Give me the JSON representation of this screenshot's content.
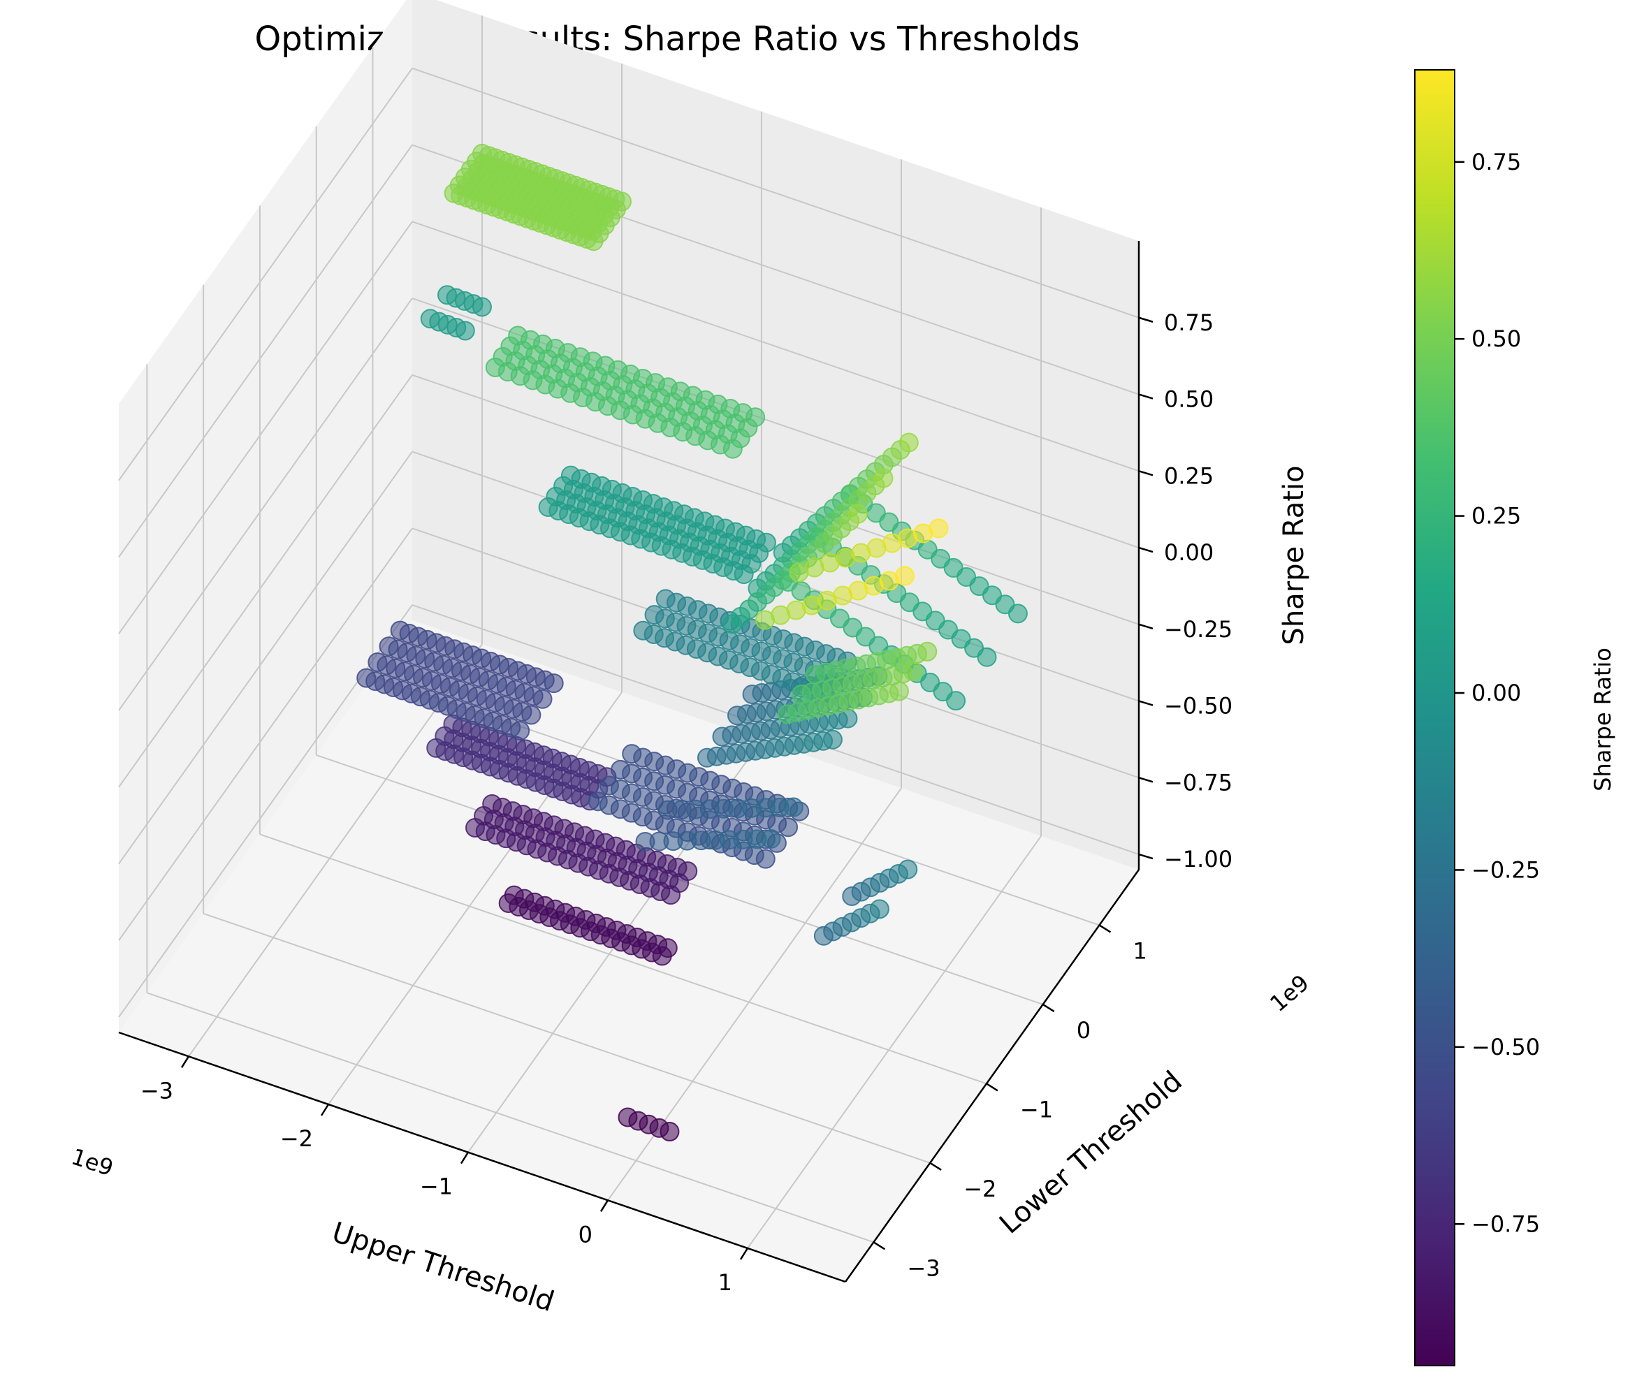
{
  "chart_data": {
    "type": "scatter3d",
    "title": "Optimization Results: Sharpe Ratio vs Thresholds",
    "xlabel": "Upper Threshold",
    "ylabel": "Lower Threshold",
    "zlabel": "Sharpe Ratio",
    "x_offset_label": "1e9",
    "y_offset_label": "1e9",
    "xlim": [
      -3.5,
      1.7
    ],
    "ylim": [
      -3.5,
      1.7
    ],
    "zlim": [
      -1.05,
      1.0
    ],
    "x_ticks": [
      -3,
      -2,
      -1,
      0,
      1
    ],
    "x_tick_labels": [
      "−3",
      "−2",
      "−1",
      "0",
      "1"
    ],
    "y_ticks": [
      -3,
      -2,
      -1,
      0,
      1
    ],
    "y_tick_labels": [
      "−3",
      "−2",
      "−1",
      "0",
      "1"
    ],
    "z_ticks": [
      -1.0,
      -0.75,
      -0.5,
      -0.25,
      0.0,
      0.25,
      0.5,
      0.75
    ],
    "z_tick_labels": [
      "−1.00",
      "−0.75",
      "−0.50",
      "−0.25",
      "0.00",
      "0.25",
      "0.50",
      "0.75"
    ],
    "grid": true,
    "colormap": "viridis",
    "colorbar": {
      "label": "Sharpe Ratio",
      "min": -0.95,
      "max": 0.88,
      "ticks": [
        -0.75,
        -0.5,
        -0.25,
        0.0,
        0.25,
        0.5,
        0.75
      ],
      "tick_labels": [
        "−0.75",
        "−0.50",
        "−0.25",
        "0.00",
        "0.25",
        "0.50",
        "0.75"
      ]
    },
    "point_groups": [
      {
        "x": [
          -3.0,
          -2.0
        ],
        "y": [
          1.2,
          1.7
        ],
        "z": [
          0.55,
          0.55
        ],
        "nx": 22,
        "ny": 6
      },
      {
        "x": [
          -3.25,
          -3.0
        ],
        "y": [
          1.4,
          1.7
        ],
        "z": [
          0.05,
          0.05
        ],
        "nx": 5,
        "ny": 2
      },
      {
        "x": [
          -2.9,
          -1.8
        ],
        "y": [
          -0.6,
          0.0
        ],
        "z": [
          -0.55,
          -0.55
        ],
        "nx": 18,
        "ny": 4
      },
      {
        "x": [
          -2.4,
          -1.3
        ],
        "y": [
          -0.6,
          -0.3
        ],
        "z": [
          -0.7,
          -0.7
        ],
        "nx": 18,
        "ny": 3
      },
      {
        "x": [
          -2.0,
          -0.6
        ],
        "y": [
          -0.9,
          -0.6
        ],
        "z": [
          -0.82,
          -0.82
        ],
        "nx": 20,
        "ny": 3
      },
      {
        "x": [
          -1.6,
          -0.5
        ],
        "y": [
          -1.3,
          -1.2
        ],
        "z": [
          -0.9,
          -0.9
        ],
        "nx": 16,
        "ny": 2
      },
      {
        "x": [
          -2.3,
          -0.6
        ],
        "y": [
          0.2,
          0.6
        ],
        "z": [
          0.35,
          0.35
        ],
        "nx": 20,
        "ny": 4
      },
      {
        "x": [
          -1.8,
          -0.4
        ],
        "y": [
          -0.1,
          0.3
        ],
        "z": [
          0.05,
          0.05
        ],
        "nx": 20,
        "ny": 4
      },
      {
        "x": [
          -1.0,
          0.3
        ],
        "y": [
          -0.4,
          0.0
        ],
        "z": [
          -0.15,
          -0.15
        ],
        "nx": 18,
        "ny": 3
      },
      {
        "x": [
          -1.0,
          0.2
        ],
        "y": [
          -1.2,
          -0.6
        ],
        "z": [
          -0.5,
          -0.5
        ],
        "nx": 16,
        "ny": 4
      },
      {
        "x": [
          -0.2,
          0.7
        ],
        "y": [
          -0.8,
          0.1
        ],
        "z": [
          0.1,
          0.6
        ],
        "nx": 16,
        "ny": 3
      },
      {
        "x": [
          -0.3,
          0.6
        ],
        "y": [
          -1.0,
          -0.2
        ],
        "z": [
          -0.3,
          -0.1
        ],
        "nx": 14,
        "ny": 4
      },
      {
        "x": [
          0.2,
          1.4
        ],
        "y": [
          -0.8,
          0.3
        ],
        "z": [
          0.3,
          0.1
        ],
        "nx": 14,
        "ny": 3
      },
      {
        "x": [
          0.6,
          1.6
        ],
        "y": [
          -2.2,
          -1.6
        ],
        "z": [
          0.6,
          0.9
        ],
        "nx": 10,
        "ny": 2
      },
      {
        "x": [
          0.8,
          1.6
        ],
        "y": [
          -2.3,
          -1.8
        ],
        "z": [
          0.35,
          0.55
        ],
        "nx": 12,
        "ny": 3
      },
      {
        "x": [
          1.1,
          1.5
        ],
        "y": [
          -2.4,
          -1.9
        ],
        "z": [
          -0.3,
          -0.15
        ],
        "nx": 7,
        "ny": 2
      },
      {
        "x": [
          -0.1,
          0.2
        ],
        "y": [
          -2.9,
          -2.6
        ],
        "z": [
          -0.95,
          -0.95
        ],
        "nx": 5,
        "ny": 1
      },
      {
        "x": [
          -0.5,
          0.4
        ],
        "y": [
          -1.6,
          -1.2
        ],
        "z": [
          -0.45,
          -0.3
        ],
        "nx": 10,
        "ny": 2
      }
    ]
  }
}
